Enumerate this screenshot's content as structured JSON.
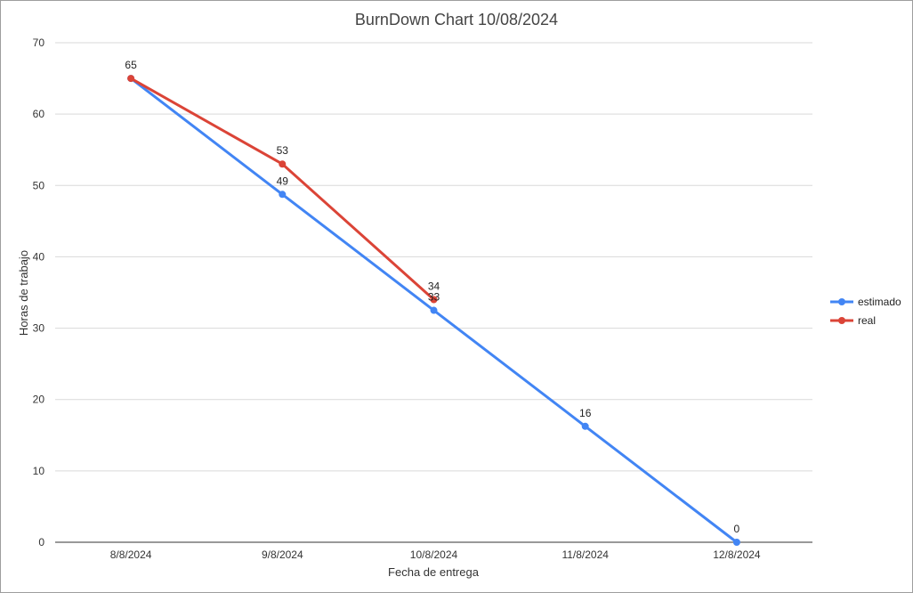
{
  "chart_data": {
    "type": "line",
    "title": "BurnDown Chart 10/08/2024",
    "xlabel": "Fecha de entrega",
    "ylabel": "Horas de trabajo",
    "categories": [
      "8/8/2024",
      "9/8/2024",
      "10/8/2024",
      "11/8/2024",
      "12/8/2024"
    ],
    "ylim": [
      0,
      70
    ],
    "yticks": [
      0,
      10,
      20,
      30,
      40,
      50,
      60,
      70
    ],
    "grid": true,
    "legend_position": "right",
    "series": [
      {
        "name": "estimado",
        "color": "#4285f4",
        "values": [
          65,
          48.75,
          32.5,
          16.25,
          0
        ],
        "labels": [
          "",
          "49",
          "33",
          "16",
          "0"
        ]
      },
      {
        "name": "real",
        "color": "#db4437",
        "values": [
          65,
          53,
          34,
          null,
          null
        ],
        "labels": [
          "65",
          "53",
          "34",
          "",
          ""
        ]
      }
    ]
  }
}
